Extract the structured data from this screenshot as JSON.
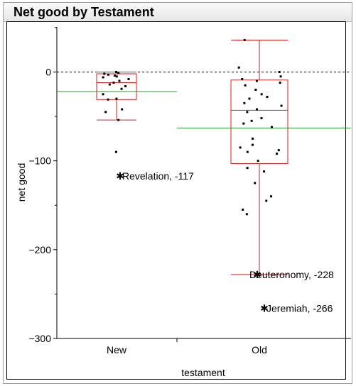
{
  "window": {
    "title": "Net good by Testament"
  },
  "chart_data": {
    "type": "box",
    "title": "Net good by Testament",
    "xlabel": "testament",
    "ylabel": "net good",
    "categories": [
      "New",
      "Old"
    ],
    "ylim": [
      -300,
      50
    ],
    "yticks": [
      0,
      -100,
      -200,
      -300
    ],
    "reference_line": {
      "y": 0,
      "style": "dashed"
    },
    "colors": {
      "box": "#cc2222",
      "mean_line": "#2e9a2e",
      "points": "#000000",
      "axis": "#000000"
    },
    "series": [
      {
        "category": "New",
        "whisker_low": -54,
        "q1": -31,
        "median": -12,
        "q3": -2,
        "whisker_high": 0,
        "mean": -22,
        "points": [
          0,
          -1,
          -2,
          -3,
          -4,
          -5,
          -6,
          -8,
          -10,
          -12,
          -14,
          -16,
          -19,
          -25,
          -30,
          -31,
          -42,
          -45,
          -54,
          -90
        ],
        "outliers": [
          {
            "label": "Revelation, -117",
            "value": -117
          }
        ]
      },
      {
        "category": "Old",
        "whisker_low": -228,
        "q1": -103,
        "median": -43,
        "q3": -9,
        "whisker_high": 36,
        "mean": -63,
        "points": [
          36,
          5,
          0,
          -5,
          -8,
          -10,
          -12,
          -15,
          -20,
          -25,
          -28,
          -30,
          -35,
          -38,
          -42,
          -45,
          -52,
          -55,
          -58,
          -62,
          -75,
          -82,
          -85,
          -88,
          -90,
          -92,
          -100,
          -108,
          -112,
          -125,
          -140,
          -145,
          -155,
          -160
        ],
        "outliers": [
          {
            "label": "Deuteronomy, -228",
            "value": -228
          },
          {
            "label": "Jeremiah, -266",
            "value": -266
          }
        ]
      }
    ]
  }
}
